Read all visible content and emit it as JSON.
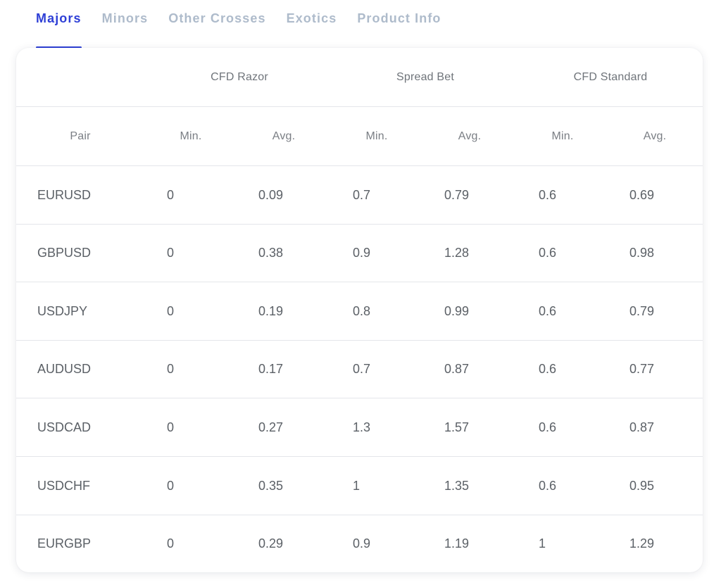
{
  "tabs": [
    {
      "label": "Majors",
      "active": true
    },
    {
      "label": "Minors",
      "active": false
    },
    {
      "label": "Other Crosses",
      "active": false
    },
    {
      "label": "Exotics",
      "active": false
    },
    {
      "label": "Product Info",
      "active": false
    }
  ],
  "table": {
    "groups": [
      "CFD Razor",
      "Spread Bet",
      "CFD Standard"
    ],
    "subheaders": {
      "pair": "Pair",
      "cfd_razor_min": "Min.",
      "cfd_razor_avg": "Avg.",
      "spread_bet_min": "Min.",
      "spread_bet_avg": "Avg.",
      "cfd_standard_min": "Min.",
      "cfd_standard_avg": "Avg."
    },
    "rows": [
      [
        "EURUSD",
        "0",
        "0.09",
        "0.7",
        "0.79",
        "0.6",
        "0.69"
      ],
      [
        "GBPUSD",
        "0",
        "0.38",
        "0.9",
        "1.28",
        "0.6",
        "0.98"
      ],
      [
        "USDJPY",
        "0",
        "0.19",
        "0.8",
        "0.99",
        "0.6",
        "0.79"
      ],
      [
        "AUDUSD",
        "0",
        "0.17",
        "0.7",
        "0.87",
        "0.6",
        "0.77"
      ],
      [
        "USDCAD",
        "0",
        "0.27",
        "1.3",
        "1.57",
        "0.6",
        "0.87"
      ],
      [
        "USDCHF",
        "0",
        "0.35",
        "1",
        "1.35",
        "0.6",
        "0.95"
      ],
      [
        "EURGBP",
        "0",
        "0.29",
        "0.9",
        "1.19",
        "1",
        "1.29"
      ]
    ]
  },
  "colors": {
    "accent": "#2e3fd6",
    "tab_inactive": "#aebbcb",
    "cell_text": "#5b6066",
    "divider": "#e4e6ea"
  }
}
